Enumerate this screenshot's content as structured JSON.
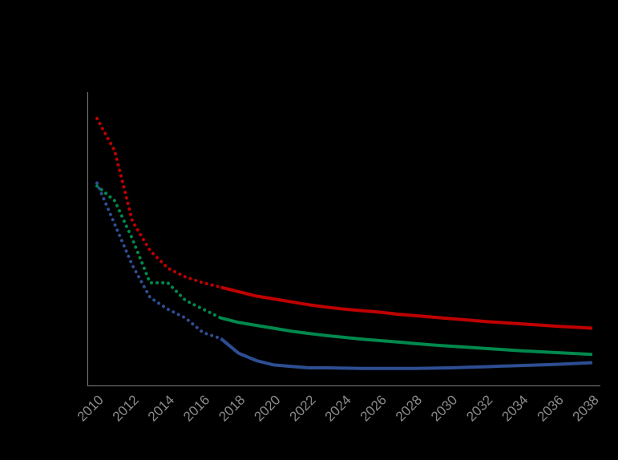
{
  "chart_data": {
    "type": "line",
    "title": "",
    "xlabel": "",
    "ylabel": "",
    "xlim": [
      2010,
      2038
    ],
    "ylim": [
      0,
      100
    ],
    "x_ticks": [
      "2010",
      "2012",
      "2014",
      "2016",
      "2018",
      "2020",
      "2022",
      "2024",
      "2026",
      "2028",
      "2030",
      "2032",
      "2034",
      "2036",
      "2038"
    ],
    "y_ticks": [],
    "grid": false,
    "legend": "none",
    "projection_start": 2017,
    "series": [
      {
        "color": "#c00000",
        "points": [
          [
            2010,
            91
          ],
          [
            2011,
            80
          ],
          [
            2012,
            56
          ],
          [
            2013,
            46
          ],
          [
            2014,
            40
          ],
          [
            2015,
            37
          ],
          [
            2016,
            35
          ],
          [
            2017,
            33.5
          ],
          [
            2018,
            32
          ],
          [
            2019,
            30.5
          ],
          [
            2020,
            29.5
          ],
          [
            2021,
            28.5
          ],
          [
            2022,
            27.5
          ],
          [
            2023,
            26.7
          ],
          [
            2024,
            26
          ],
          [
            2025,
            25.5
          ],
          [
            2026,
            25
          ],
          [
            2027,
            24.3
          ],
          [
            2028,
            23.8
          ],
          [
            2029,
            23.3
          ],
          [
            2030,
            22.8
          ],
          [
            2031,
            22.3
          ],
          [
            2032,
            21.8
          ],
          [
            2033,
            21.4
          ],
          [
            2034,
            21
          ],
          [
            2035,
            20.6
          ],
          [
            2036,
            20.2
          ],
          [
            2037,
            19.9
          ],
          [
            2038,
            19.5
          ]
        ]
      },
      {
        "color": "#00894d",
        "points": [
          [
            2010,
            68
          ],
          [
            2011,
            63
          ],
          [
            2012,
            50
          ],
          [
            2013,
            35
          ],
          [
            2014,
            35
          ],
          [
            2015,
            29
          ],
          [
            2016,
            26
          ],
          [
            2017,
            23
          ],
          [
            2018,
            21.5
          ],
          [
            2019,
            20.5
          ],
          [
            2020,
            19.5
          ],
          [
            2021,
            18.5
          ],
          [
            2022,
            17.7
          ],
          [
            2023,
            17
          ],
          [
            2024,
            16.4
          ],
          [
            2025,
            15.8
          ],
          [
            2026,
            15.3
          ],
          [
            2027,
            14.8
          ],
          [
            2028,
            14.3
          ],
          [
            2029,
            13.8
          ],
          [
            2030,
            13.4
          ],
          [
            2031,
            13
          ],
          [
            2032,
            12.6
          ],
          [
            2033,
            12.2
          ],
          [
            2034,
            11.8
          ],
          [
            2035,
            11.5
          ],
          [
            2036,
            11.2
          ],
          [
            2037,
            10.9
          ],
          [
            2038,
            10.6
          ]
        ]
      },
      {
        "color": "#2e4e93",
        "points": [
          [
            2010,
            69
          ],
          [
            2011,
            55
          ],
          [
            2012,
            41
          ],
          [
            2013,
            30
          ],
          [
            2014,
            26
          ],
          [
            2015,
            23
          ],
          [
            2016,
            18
          ],
          [
            2017,
            16
          ],
          [
            2018,
            11
          ],
          [
            2019,
            8.5
          ],
          [
            2020,
            7
          ],
          [
            2021,
            6.5
          ],
          [
            2022,
            6
          ],
          [
            2023,
            6
          ],
          [
            2024,
            5.9
          ],
          [
            2025,
            5.8
          ],
          [
            2026,
            5.8
          ],
          [
            2027,
            5.8
          ],
          [
            2028,
            5.8
          ],
          [
            2029,
            5.9
          ],
          [
            2030,
            6
          ],
          [
            2031,
            6.2
          ],
          [
            2032,
            6.4
          ],
          [
            2033,
            6.6
          ],
          [
            2034,
            6.8
          ],
          [
            2035,
            7
          ],
          [
            2036,
            7.2
          ],
          [
            2037,
            7.5
          ],
          [
            2038,
            7.8
          ]
        ]
      }
    ]
  }
}
